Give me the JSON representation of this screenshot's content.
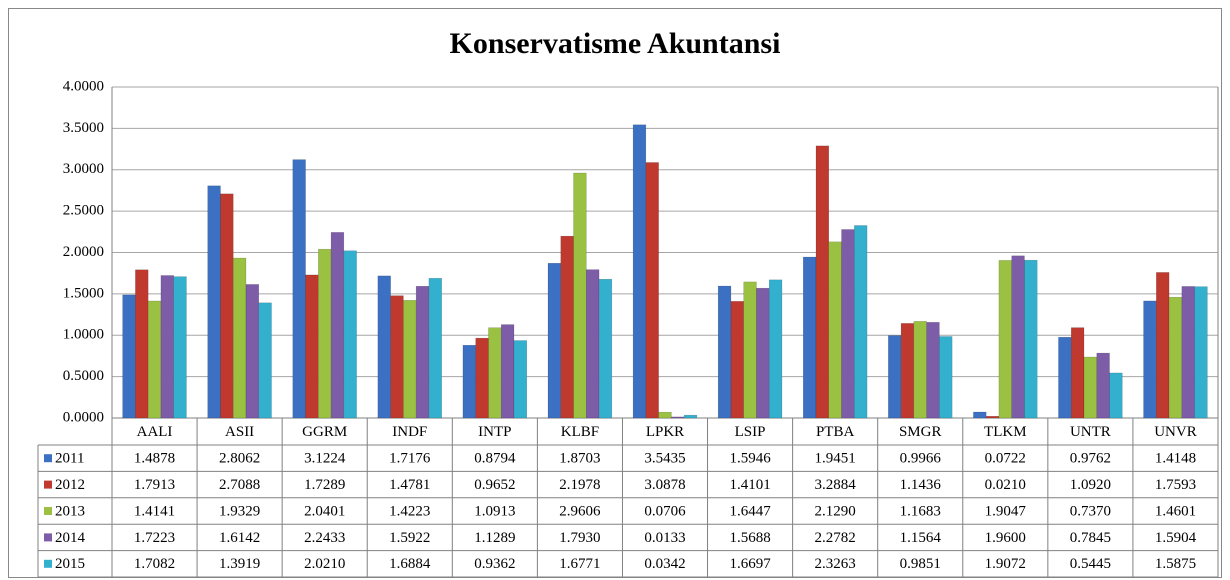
{
  "chart_data": {
    "type": "bar",
    "title": "Konservatisme Akuntansi",
    "categories": [
      "AALI",
      "ASII",
      "GGRM",
      "INDF",
      "INTP",
      "KLBF",
      "LPKR",
      "LSIP",
      "PTBA",
      "SMGR",
      "TLKM",
      "UNTR",
      "UNVR"
    ],
    "series": [
      {
        "name": "2011",
        "color": "#3b70c2",
        "values": [
          1.4878,
          2.8062,
          3.1224,
          1.7176,
          0.8794,
          1.8703,
          3.5435,
          1.5946,
          1.9451,
          0.9966,
          0.0722,
          0.9762,
          1.4148
        ],
        "value_labels": [
          "1.4878",
          "2.8062",
          "3.1224",
          "1.7176",
          "0.8794",
          "1.8703",
          "3.5435",
          "1.5946",
          "1.9451",
          "0.9966",
          "0.0722",
          "0.9762",
          "1.4148"
        ]
      },
      {
        "name": "2012",
        "color": "#c0392f",
        "values": [
          1.7913,
          2.7088,
          1.7289,
          1.4781,
          0.9652,
          2.1978,
          3.0878,
          1.4101,
          3.2884,
          1.1436,
          0.021,
          1.092,
          1.7593
        ],
        "value_labels": [
          "1.7913",
          "2.7088",
          "1.7289",
          "1.4781",
          "0.9652",
          "2.1978",
          "3.0878",
          "1.4101",
          "3.2884",
          "1.1436",
          "0.0210",
          "1.0920",
          "1.7593"
        ]
      },
      {
        "name": "2013",
        "color": "#9bc143",
        "values": [
          1.4141,
          1.9329,
          2.0401,
          1.4223,
          1.0913,
          2.9606,
          0.0706,
          1.6447,
          2.129,
          1.1683,
          1.9047,
          0.737,
          1.4601
        ],
        "value_labels": [
          "1.4141",
          "1.9329",
          "2.0401",
          "1.4223",
          "1.0913",
          "2.9606",
          "0.0706",
          "1.6447",
          "2.1290",
          "1.1683",
          "1.9047",
          "0.7370",
          "1.4601"
        ]
      },
      {
        "name": "2014",
        "color": "#7d5ca8",
        "values": [
          1.7223,
          1.6142,
          2.2433,
          1.5922,
          1.1289,
          1.793,
          0.0133,
          1.5688,
          2.2782,
          1.1564,
          1.96,
          0.7845,
          1.5904
        ],
        "value_labels": [
          "1.7223",
          "1.6142",
          "2.2433",
          "1.5922",
          "1.1289",
          "1.7930",
          "0.0133",
          "1.5688",
          "2.2782",
          "1.1564",
          "1.9600",
          "0.7845",
          "1.5904"
        ]
      },
      {
        "name": "2015",
        "color": "#34b0cf",
        "values": [
          1.7082,
          1.3919,
          2.021,
          1.6884,
          0.9362,
          1.6771,
          0.0342,
          1.6697,
          2.3263,
          0.9851,
          1.9072,
          0.5445,
          1.5875
        ],
        "value_labels": [
          "1.7082",
          "1.3919",
          "2.0210",
          "1.6884",
          "0.9362",
          "1.6771",
          "0.0342",
          "1.6697",
          "2.3263",
          "0.9851",
          "1.9072",
          "0.5445",
          "1.5875"
        ]
      }
    ],
    "ylim": [
      0,
      4
    ],
    "yticks": [
      {
        "value": 0,
        "label": "0.0000"
      },
      {
        "value": 0.5,
        "label": "0.5000"
      },
      {
        "value": 1,
        "label": "1.0000"
      },
      {
        "value": 1.5,
        "label": "1.5000"
      },
      {
        "value": 2,
        "label": "2.0000"
      },
      {
        "value": 2.5,
        "label": "2.5000"
      },
      {
        "value": 3,
        "label": "3.0000"
      },
      {
        "value": 3.5,
        "label": "3.5000"
      },
      {
        "value": 4,
        "label": "4.0000"
      }
    ],
    "grid": true
  }
}
